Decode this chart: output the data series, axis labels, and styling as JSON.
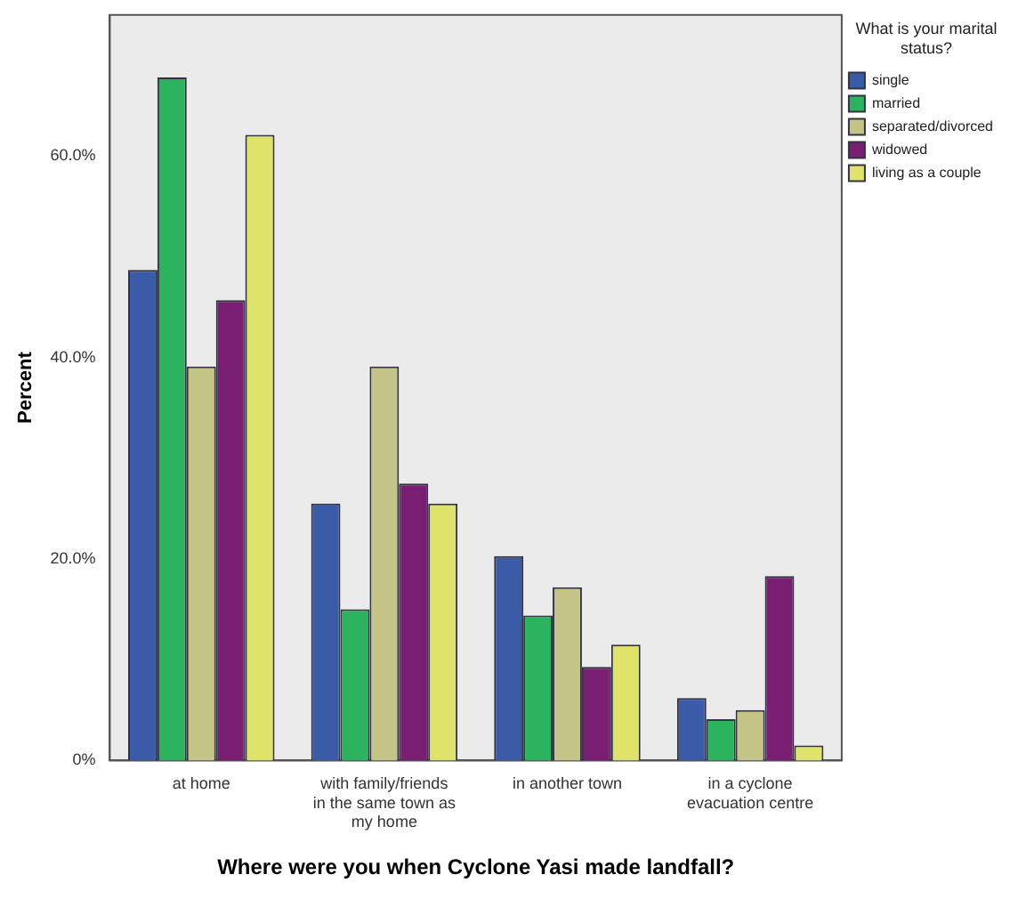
{
  "chart_data": {
    "type": "bar",
    "xlabel": "Where were you when Cyclone Yasi made landfall?",
    "ylabel": "Percent",
    "legend_title": "What is your marital status?",
    "categories": [
      "at home",
      "with family/friends in the same town as my home",
      "in another town",
      "in a cyclone evacuation centre"
    ],
    "series": [
      {
        "name": "single",
        "color": "#3a5ba8",
        "values": [
          48.7,
          25.5,
          20.3,
          6.2
        ]
      },
      {
        "name": "married",
        "color": "#2bb35e",
        "values": [
          67.8,
          15.0,
          14.4,
          4.1
        ]
      },
      {
        "name": "separated/divorced",
        "color": "#c3c485",
        "values": [
          39.1,
          39.1,
          17.2,
          5.0
        ]
      },
      {
        "name": "widowed",
        "color": "#7a1e74",
        "values": [
          45.7,
          27.5,
          9.3,
          18.3
        ]
      },
      {
        "name": "living as a couple",
        "color": "#e0e36a",
        "values": [
          62.1,
          25.5,
          11.5,
          1.5
        ]
      }
    ],
    "ylim": [
      0,
      74
    ],
    "yticks": [
      {
        "value": 0,
        "label": "0%"
      },
      {
        "value": 20,
        "label": "20.0%"
      },
      {
        "value": 40,
        "label": "40.0%"
      },
      {
        "value": 60,
        "label": "60.0%"
      }
    ],
    "grid": false,
    "legend": "top right"
  }
}
